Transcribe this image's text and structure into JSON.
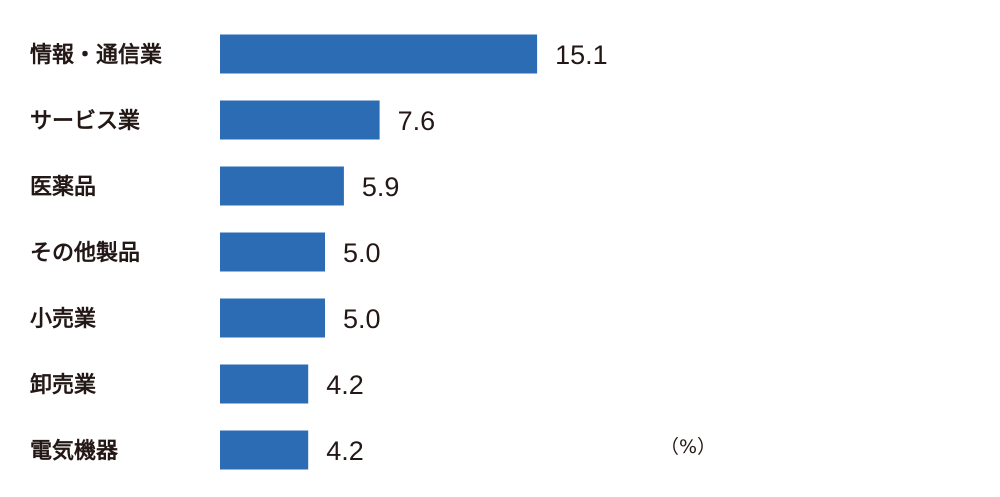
{
  "chart_data": {
    "type": "bar",
    "orientation": "horizontal",
    "categories": [
      "情報・通信業",
      "サービス業",
      "医薬品",
      "その他製品",
      "小売業",
      "卸売業",
      "電気機器"
    ],
    "values": [
      15.1,
      7.6,
      5.9,
      5.0,
      5.0,
      4.2,
      4.2
    ],
    "value_labels": [
      "15.1",
      "7.6",
      "5.9",
      "5.0",
      "5.0",
      "4.2",
      "4.2"
    ],
    "unit": "（%）",
    "title": "",
    "xlabel": "",
    "ylabel": "",
    "grid": false,
    "bar_color": "#2B6CB4"
  }
}
